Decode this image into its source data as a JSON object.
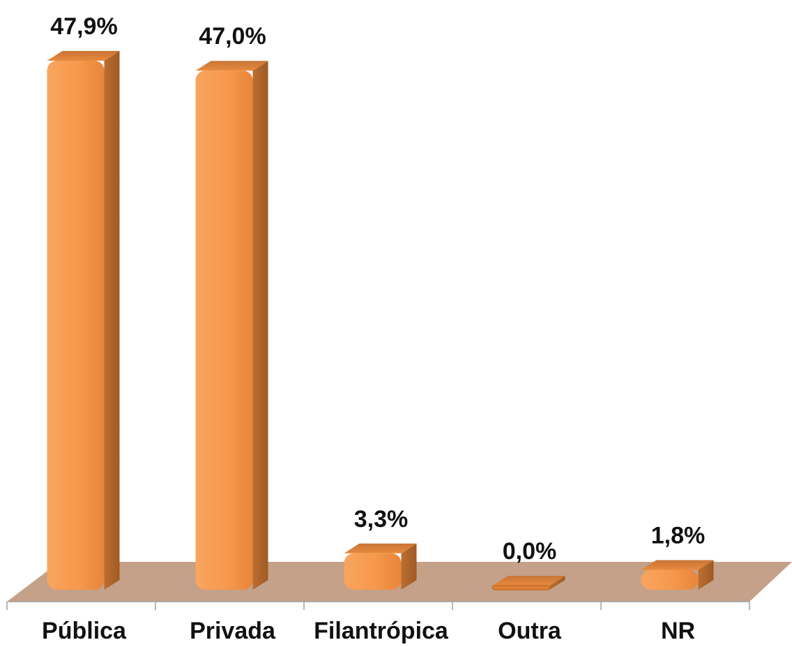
{
  "chart_data": {
    "type": "bar",
    "categories": [
      "Pública",
      "Privada",
      "Filantrópica",
      "Outra",
      "NR"
    ],
    "values": [
      47.9,
      47.0,
      3.3,
      0.0,
      1.8
    ],
    "value_labels": [
      "47,9%",
      "47,0%",
      "3,3%",
      "0,0%",
      "1,8%"
    ],
    "title": "",
    "xlabel": "",
    "ylabel": "",
    "ylim": [
      0,
      50
    ],
    "grid": false,
    "legend": "none",
    "style": "3d-column",
    "colors": {
      "bar_front": "#f79646",
      "bar_side": "#b5692c",
      "bar_top": "#e07f33",
      "floor": "#c4a188"
    }
  }
}
